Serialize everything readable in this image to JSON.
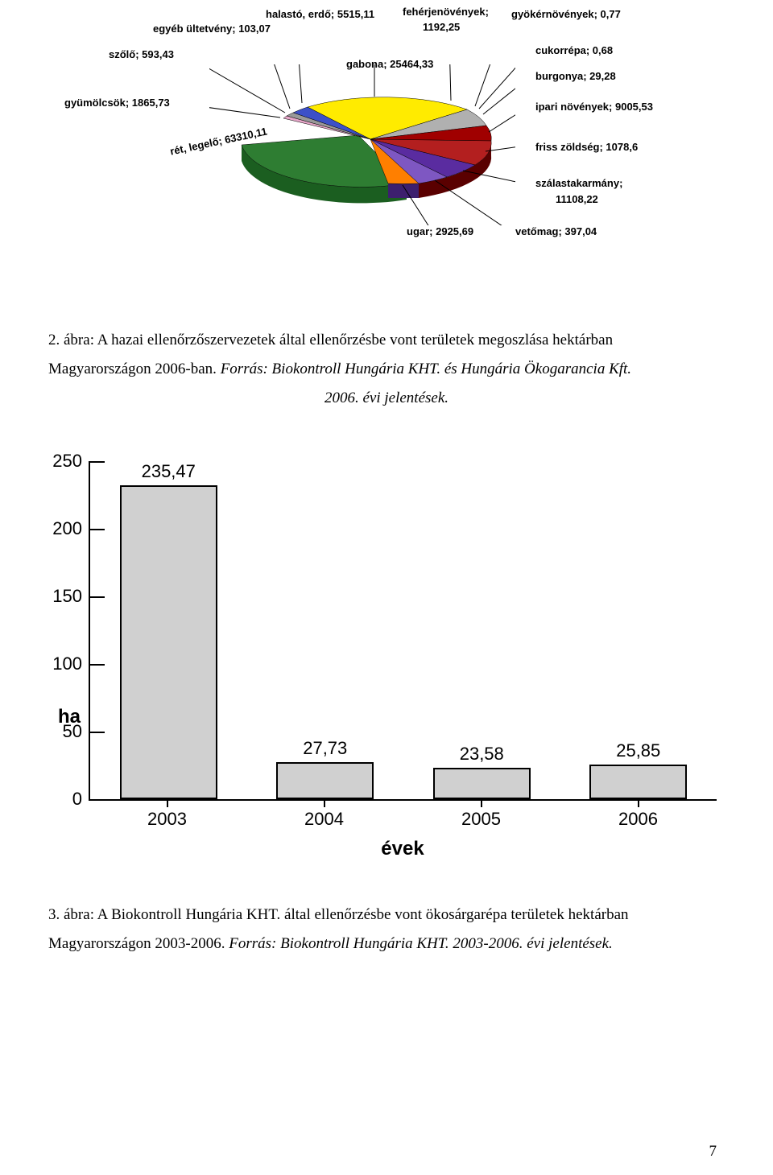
{
  "pie": {
    "labels": {
      "halasto_erdo": "halastó, erdő; 5515,11",
      "egyeb_ultetveny": "egyéb ültetvény; 103,07",
      "szolo": "szőlő; 593,43",
      "gyumolcsok": "gyümölcsök; 1865,73",
      "ret_legelo": "rét, legelő; 63310,11",
      "gabona": "gabona; 25464,33",
      "feherjenovenyek_1": "fehérjenövények;",
      "feherjenovenyek_2": "1192,25",
      "gyokernovenyek": "gyökérnövények; 0,77",
      "cukorrepa": "cukorrépa; 0,68",
      "burgonya": "burgonya; 29,28",
      "ipari_novenyek": "ipari növények; 9005,53",
      "friss_zoldseg": "friss zöldség; 1078,6",
      "szalastakarmany_1": "szálastakarmány;",
      "szalastakarmany_2": "11108,22",
      "vetomag": "vetőmag; 397,04",
      "ugar": "ugar; 2925,69"
    },
    "colors": {
      "ret_legelo": "#2e7d32",
      "gabona": "#ffeb00",
      "ipari": "#a00000",
      "szalast": "#5a2ca0",
      "friss": "#b31f1f",
      "ugar": "#ff7f00",
      "halasto": "#3c50c8",
      "gyumolcsok": "#999999",
      "szolo": "#e6a6c8",
      "egyeb": "#d0d0d0",
      "feherje": "#b0b0b0",
      "vetomag": "#5a2ca0"
    }
  },
  "caption1": {
    "line1a": "2. ábra: A hazai ellenőrzőszervezetek által ellenőrzésbe vont területek megoszlása hektárban",
    "line2a": "Magyarországon 2006-ban. ",
    "line2b": "Forrás: Biokontroll Hungária KHT. és Hungária Ökogarancia Kft.",
    "line3": "2006. évi jelentések."
  },
  "bar_chart": {
    "type": "bar",
    "y_title": "ha",
    "x_title": "évek",
    "ylim": [
      0,
      250
    ],
    "ytick_step": 50,
    "yticks": [
      "0",
      "50",
      "100",
      "150",
      "200",
      "250"
    ],
    "categories": [
      "2003",
      "2004",
      "2005",
      "2006"
    ],
    "values": [
      235.47,
      27.73,
      23.58,
      25.85
    ],
    "value_labels": [
      "235,47",
      "27,73",
      "23,58",
      "25,85"
    ],
    "bar_fill": "#d0d0d0",
    "bar_border": "#000000",
    "axis_color": "#000000",
    "label_fontsize": 22,
    "title_fontsize": 24
  },
  "caption2": {
    "line1a": "3. ábra: A Biokontroll Hungária KHT. által ellenőrzésbe vont ökosárgarépa területek hektárban",
    "line2a": "Magyarországon 2003-2006. ",
    "line2b": "Forrás: Biokontroll Hungária KHT. 2003-2006. évi jelentések."
  },
  "page_number": "7"
}
